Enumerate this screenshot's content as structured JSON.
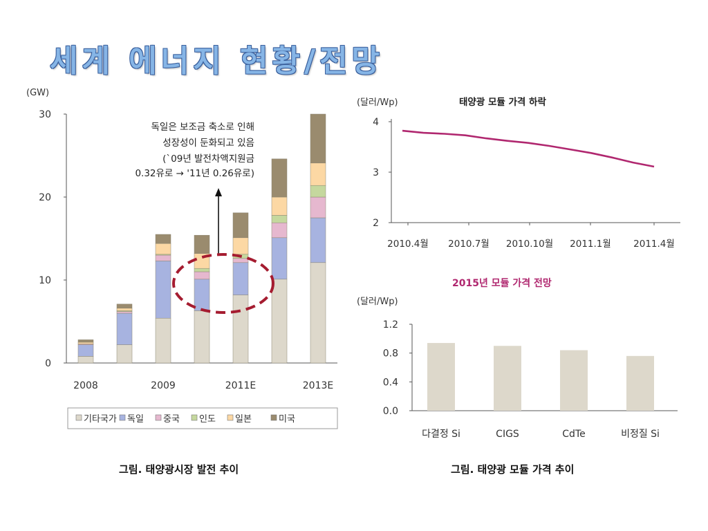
{
  "page": {
    "title": "세계 에너지 현황/전망"
  },
  "captions": {
    "left": "그림. 태양광시장 발전 추이",
    "right": "그림. 태양광 모듈 가격 추이"
  },
  "colors": {
    "기타국가": "#ddd8cb",
    "독일": "#a7b3e0",
    "중국": "#e6b8cf",
    "인도": "#c5d89e",
    "일본": "#fcd8a4",
    "미국": "#9a8b6e",
    "accent_line": "#b0276f",
    "ellipse": "#a51c30",
    "bar_gray": "#ddd8cb"
  },
  "chart_data": [
    {
      "type": "bar",
      "stacked": true,
      "unit_label": "(GW)",
      "ylim": [
        0,
        30
      ],
      "yticks": [
        0,
        10,
        20,
        30
      ],
      "categories": [
        "2008",
        "",
        "2009",
        "",
        "2011E",
        "",
        "2013E"
      ],
      "series": [
        {
          "name": "기타국가",
          "values": [
            0.8,
            2.2,
            5.4,
            6.3,
            8.2,
            10.1,
            12.1
          ]
        },
        {
          "name": "독일",
          "values": [
            1.4,
            3.8,
            6.9,
            3.8,
            3.9,
            5.0,
            5.4
          ]
        },
        {
          "name": "중국",
          "values": [
            0.1,
            0.2,
            0.7,
            0.9,
            0.5,
            1.8,
            2.5
          ]
        },
        {
          "name": "인도",
          "values": [
            0.0,
            0.1,
            0.1,
            0.4,
            0.5,
            0.9,
            1.4
          ]
        },
        {
          "name": "일본",
          "values": [
            0.2,
            0.3,
            1.3,
            1.8,
            2.0,
            2.2,
            2.7
          ]
        },
        {
          "name": "미국",
          "values": [
            0.3,
            0.5,
            1.1,
            2.2,
            3.0,
            4.6,
            5.9
          ]
        }
      ],
      "annotation": [
        "독일은 보조금 축소로 인해",
        "성장성이 둔화되고 있음",
        "(`09년 발전차액지원금",
        "0.32유로 → '11년 0.26유로)"
      ],
      "grid": false,
      "legend": "bottom"
    },
    {
      "type": "line",
      "title": "태양광 모듈 가격 하락",
      "ylabel": "(달러/Wp)",
      "ylim": [
        2,
        4
      ],
      "yticks": [
        2,
        3,
        4
      ],
      "x_tick_labels": [
        "2010.4월",
        "2010.7월",
        "2010.10월",
        "2011.1월",
        "2011.4월"
      ],
      "x": [
        "2010.4월",
        "",
        "",
        "2010.7월",
        "",
        "",
        "2010.10월",
        "",
        "",
        "2011.1월",
        "",
        "",
        "2011.4월"
      ],
      "values": [
        3.82,
        3.78,
        3.76,
        3.73,
        3.67,
        3.62,
        3.58,
        3.52,
        3.45,
        3.38,
        3.29,
        3.19,
        3.11
      ],
      "grid": false
    },
    {
      "type": "bar",
      "title": "2015년 모듈 가격 전망",
      "ylabel": "(달러/Wp)",
      "ylim": [
        0,
        1.2
      ],
      "yticks": [
        "0.0",
        "0.4",
        "0.8",
        "1.2"
      ],
      "categories": [
        "다결정 Si",
        "CIGS",
        "CdTe",
        "비정질 Si"
      ],
      "values": [
        0.94,
        0.9,
        0.84,
        0.76
      ],
      "grid": false
    }
  ]
}
